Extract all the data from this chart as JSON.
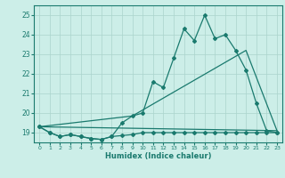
{
  "xlabel": "Humidex (Indice chaleur)",
  "bg_color": "#cceee8",
  "line_color": "#1a7a6e",
  "grid_color": "#aad4cc",
  "xlim": [
    -0.5,
    23.5
  ],
  "ylim": [
    18.5,
    25.5
  ],
  "yticks": [
    19,
    20,
    21,
    22,
    23,
    24,
    25
  ],
  "xticks": [
    0,
    1,
    2,
    3,
    4,
    5,
    6,
    7,
    8,
    9,
    10,
    11,
    12,
    13,
    14,
    15,
    16,
    17,
    18,
    19,
    20,
    21,
    22,
    23
  ],
  "series1_x": [
    0,
    1,
    2,
    3,
    4,
    5,
    6,
    7,
    8,
    9,
    10,
    11,
    12,
    13,
    14,
    15,
    16,
    17,
    18,
    19,
    20,
    21,
    22,
    23
  ],
  "series1_y": [
    19.3,
    19.0,
    18.8,
    18.9,
    18.8,
    18.7,
    18.65,
    18.8,
    18.85,
    18.9,
    19.0,
    19.0,
    19.0,
    19.0,
    19.0,
    19.0,
    19.0,
    19.0,
    19.0,
    19.0,
    19.0,
    19.0,
    19.0,
    19.0
  ],
  "series2_x": [
    0,
    1,
    2,
    3,
    4,
    5,
    6,
    7,
    8,
    9,
    10,
    11,
    12,
    13,
    14,
    15,
    16,
    17,
    18,
    19,
    20,
    21,
    22,
    23
  ],
  "series2_y": [
    19.3,
    19.0,
    18.8,
    18.9,
    18.8,
    18.7,
    18.65,
    18.8,
    19.5,
    19.85,
    20.0,
    21.6,
    21.3,
    22.8,
    24.3,
    23.7,
    25.0,
    23.8,
    24.0,
    23.2,
    22.2,
    20.5,
    19.1,
    19.0
  ],
  "series3_x": [
    0,
    23
  ],
  "series3_y": [
    19.3,
    19.1
  ],
  "series4_x": [
    0,
    9,
    20,
    23
  ],
  "series4_y": [
    19.3,
    19.85,
    23.2,
    19.1
  ]
}
